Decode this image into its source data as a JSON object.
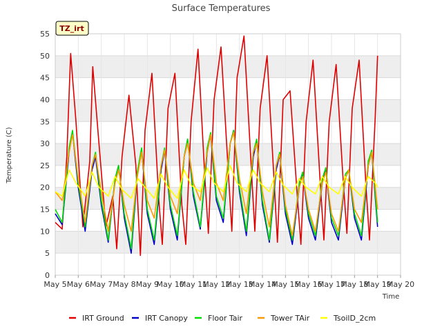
{
  "chart_data": {
    "type": "line",
    "title": "Surface Temperatures",
    "xlabel": "Time",
    "ylabel": "Temperature (C)",
    "site_tag": "TZ_irt",
    "xlim": [
      5,
      20
    ],
    "ylim": [
      0,
      55
    ],
    "x_ticks": [
      {
        "v": 5,
        "label": "May 5"
      },
      {
        "v": 6,
        "label": "May 6"
      },
      {
        "v": 7,
        "label": "May 7"
      },
      {
        "v": 8,
        "label": "May 8"
      },
      {
        "v": 9,
        "label": "May 9"
      },
      {
        "v": 10,
        "label": "May 10"
      },
      {
        "v": 11,
        "label": "May 11"
      },
      {
        "v": 12,
        "label": "May 12"
      },
      {
        "v": 13,
        "label": "May 13"
      },
      {
        "v": 14,
        "label": "May 14"
      },
      {
        "v": 15,
        "label": "May 15"
      },
      {
        "v": 16,
        "label": "May 16"
      },
      {
        "v": 17,
        "label": "May 17"
      },
      {
        "v": 18,
        "label": "May 18"
      },
      {
        "v": 19,
        "label": "May 19"
      },
      {
        "v": 20,
        "label": "May 20"
      }
    ],
    "y_ticks": [
      0,
      5,
      10,
      15,
      20,
      25,
      30,
      35,
      40,
      45,
      50,
      55
    ],
    "grid": true,
    "legend_position": "bottom",
    "series": [
      {
        "name": "IRT Ground",
        "color": "#e00000",
        "x": [
          5.0,
          5.3,
          5.5,
          5.67,
          5.9,
          6.2,
          6.5,
          6.63,
          6.9,
          7.2,
          7.5,
          7.67,
          7.9,
          8.2,
          8.5,
          8.7,
          8.9,
          9.2,
          9.5,
          9.65,
          9.9,
          10.2,
          10.5,
          10.67,
          10.9,
          11.2,
          11.5,
          11.65,
          11.9,
          12.2,
          12.5,
          12.67,
          12.9,
          13.2,
          13.5,
          13.67,
          13.9,
          14.2,
          14.5,
          14.65,
          14.9,
          15.2,
          15.5,
          15.67,
          15.9,
          16.2,
          16.5,
          16.67,
          16.9,
          17.2,
          17.5,
          17.67,
          17.9,
          18.2,
          18.5,
          18.65,
          18.9,
          19.0
        ],
        "y": [
          12,
          10.5,
          27,
          50.5,
          35,
          11,
          26,
          47.5,
          30,
          11,
          18,
          6,
          27,
          41,
          25,
          4.5,
          33,
          46,
          17,
          7,
          38,
          46,
          16,
          7,
          35,
          51.5,
          22,
          9.5,
          40,
          52,
          25,
          10,
          45,
          54.5,
          26,
          10,
          38,
          50,
          22,
          7.5,
          40,
          42,
          19,
          7,
          35,
          49,
          22,
          8,
          35,
          48,
          22,
          9.5,
          38,
          49,
          20,
          8,
          36,
          50
        ]
      },
      {
        "name": "IRT Canopy",
        "color": "#0000cc",
        "x": [
          5.0,
          5.3,
          5.6,
          5.75,
          6.0,
          6.3,
          6.6,
          6.75,
          7.0,
          7.3,
          7.6,
          7.75,
          8.0,
          8.3,
          8.55,
          8.75,
          9.0,
          9.3,
          9.6,
          9.75,
          10.0,
          10.3,
          10.6,
          10.75,
          11.0,
          11.3,
          11.6,
          11.75,
          12.0,
          12.3,
          12.6,
          12.75,
          13.0,
          13.3,
          13.6,
          13.75,
          14.0,
          14.3,
          14.6,
          14.75,
          15.0,
          15.3,
          15.6,
          15.75,
          16.0,
          16.3,
          16.6,
          16.75,
          17.0,
          17.3,
          17.6,
          17.75,
          18.0,
          18.3,
          18.6,
          18.75,
          19.0
        ],
        "y": [
          14,
          11.5,
          28,
          32.5,
          20,
          10,
          24,
          27,
          16,
          7.5,
          22,
          25,
          13,
          5,
          22,
          28.5,
          14,
          7,
          24,
          28.5,
          15,
          8,
          27,
          31,
          18,
          10.5,
          28,
          32,
          17,
          12,
          30,
          33,
          19,
          9,
          27,
          30.5,
          16,
          7.5,
          24,
          27.5,
          14,
          7,
          20,
          23,
          13,
          8,
          21,
          24,
          12,
          8,
          22,
          24,
          13,
          8,
          25,
          28,
          11
        ]
      },
      {
        "name": "Floor Tair",
        "color": "#00dd00",
        "x": [
          5.0,
          5.3,
          5.6,
          5.75,
          6.0,
          6.3,
          6.6,
          6.75,
          7.0,
          7.3,
          7.6,
          7.75,
          8.0,
          8.3,
          8.55,
          8.75,
          9.0,
          9.3,
          9.6,
          9.75,
          10.0,
          10.3,
          10.6,
          10.75,
          11.0,
          11.3,
          11.6,
          11.75,
          12.0,
          12.3,
          12.6,
          12.75,
          13.0,
          13.3,
          13.6,
          13.75,
          14.0,
          14.3,
          14.6,
          14.75,
          15.0,
          15.3,
          15.6,
          15.75,
          16.0,
          16.3,
          16.6,
          16.75,
          17.0,
          17.3,
          17.6,
          17.75,
          18.0,
          18.3,
          18.6,
          18.75,
          19.0
        ],
        "y": [
          15,
          12,
          29,
          33,
          21,
          11,
          25,
          28,
          17,
          8,
          22,
          25,
          14,
          6,
          23,
          29,
          15,
          8,
          25,
          29,
          16,
          9,
          27,
          31,
          19,
          11,
          29,
          32.5,
          18,
          13,
          30,
          33,
          20,
          10,
          28,
          31,
          17,
          8,
          25,
          28,
          15,
          8,
          21,
          23.5,
          14,
          9,
          22,
          24.5,
          13,
          9,
          23,
          24,
          14,
          9,
          26,
          28.5,
          12
        ]
      },
      {
        "name": "Tower TAir",
        "color": "#ff9900",
        "x": [
          5.0,
          5.3,
          5.6,
          5.75,
          6.0,
          6.3,
          6.6,
          6.75,
          7.0,
          7.3,
          7.6,
          7.75,
          8.0,
          8.3,
          8.55,
          8.75,
          9.0,
          9.3,
          9.6,
          9.75,
          10.0,
          10.3,
          10.6,
          10.75,
          11.0,
          11.3,
          11.6,
          11.75,
          12.0,
          12.3,
          12.6,
          12.75,
          13.0,
          13.3,
          13.6,
          13.75,
          14.0,
          14.3,
          14.6,
          14.75,
          15.0,
          15.3,
          15.6,
          15.75,
          16.0,
          16.3,
          16.6,
          16.75,
          17.0,
          17.3,
          17.6,
          17.75,
          18.0,
          18.3,
          18.6,
          18.75,
          19.0
        ],
        "y": [
          19,
          17,
          28,
          32,
          22,
          12,
          25,
          27.5,
          19,
          10,
          21,
          24,
          16,
          10,
          22,
          28,
          17,
          13,
          25,
          28.5,
          18,
          14,
          27,
          30,
          21,
          17,
          28,
          32,
          21,
          17,
          30,
          32.5,
          22,
          14,
          28,
          30,
          19,
          11,
          25,
          27.5,
          16,
          9,
          20,
          22.5,
          15,
          10,
          21,
          23.5,
          14,
          10,
          22,
          24,
          15,
          12,
          25,
          28,
          15
        ]
      },
      {
        "name": "TsoilD_2cm",
        "color": "#ffff00",
        "x": [
          5.0,
          5.3,
          5.6,
          5.9,
          6.3,
          6.6,
          6.9,
          7.3,
          7.6,
          7.9,
          8.3,
          8.6,
          8.9,
          9.3,
          9.6,
          9.9,
          10.3,
          10.6,
          10.9,
          11.3,
          11.6,
          11.9,
          12.3,
          12.6,
          12.9,
          13.3,
          13.6,
          13.9,
          14.3,
          14.6,
          14.9,
          15.3,
          15.6,
          15.9,
          16.3,
          16.6,
          16.9,
          17.3,
          17.6,
          17.9,
          18.3,
          18.6,
          18.9,
          19.0
        ],
        "y": [
          19,
          18,
          24,
          21,
          18,
          23.5,
          20,
          18,
          22.5,
          19.5,
          17.5,
          22,
          20,
          17.5,
          23,
          20,
          17.5,
          24,
          20.5,
          19,
          24.5,
          21,
          19,
          25,
          21,
          19,
          24,
          21,
          19,
          23.5,
          20.5,
          18.5,
          22,
          20,
          18.5,
          22.5,
          20,
          18.5,
          22.5,
          20,
          18,
          22.5,
          21,
          20
        ]
      }
    ]
  }
}
